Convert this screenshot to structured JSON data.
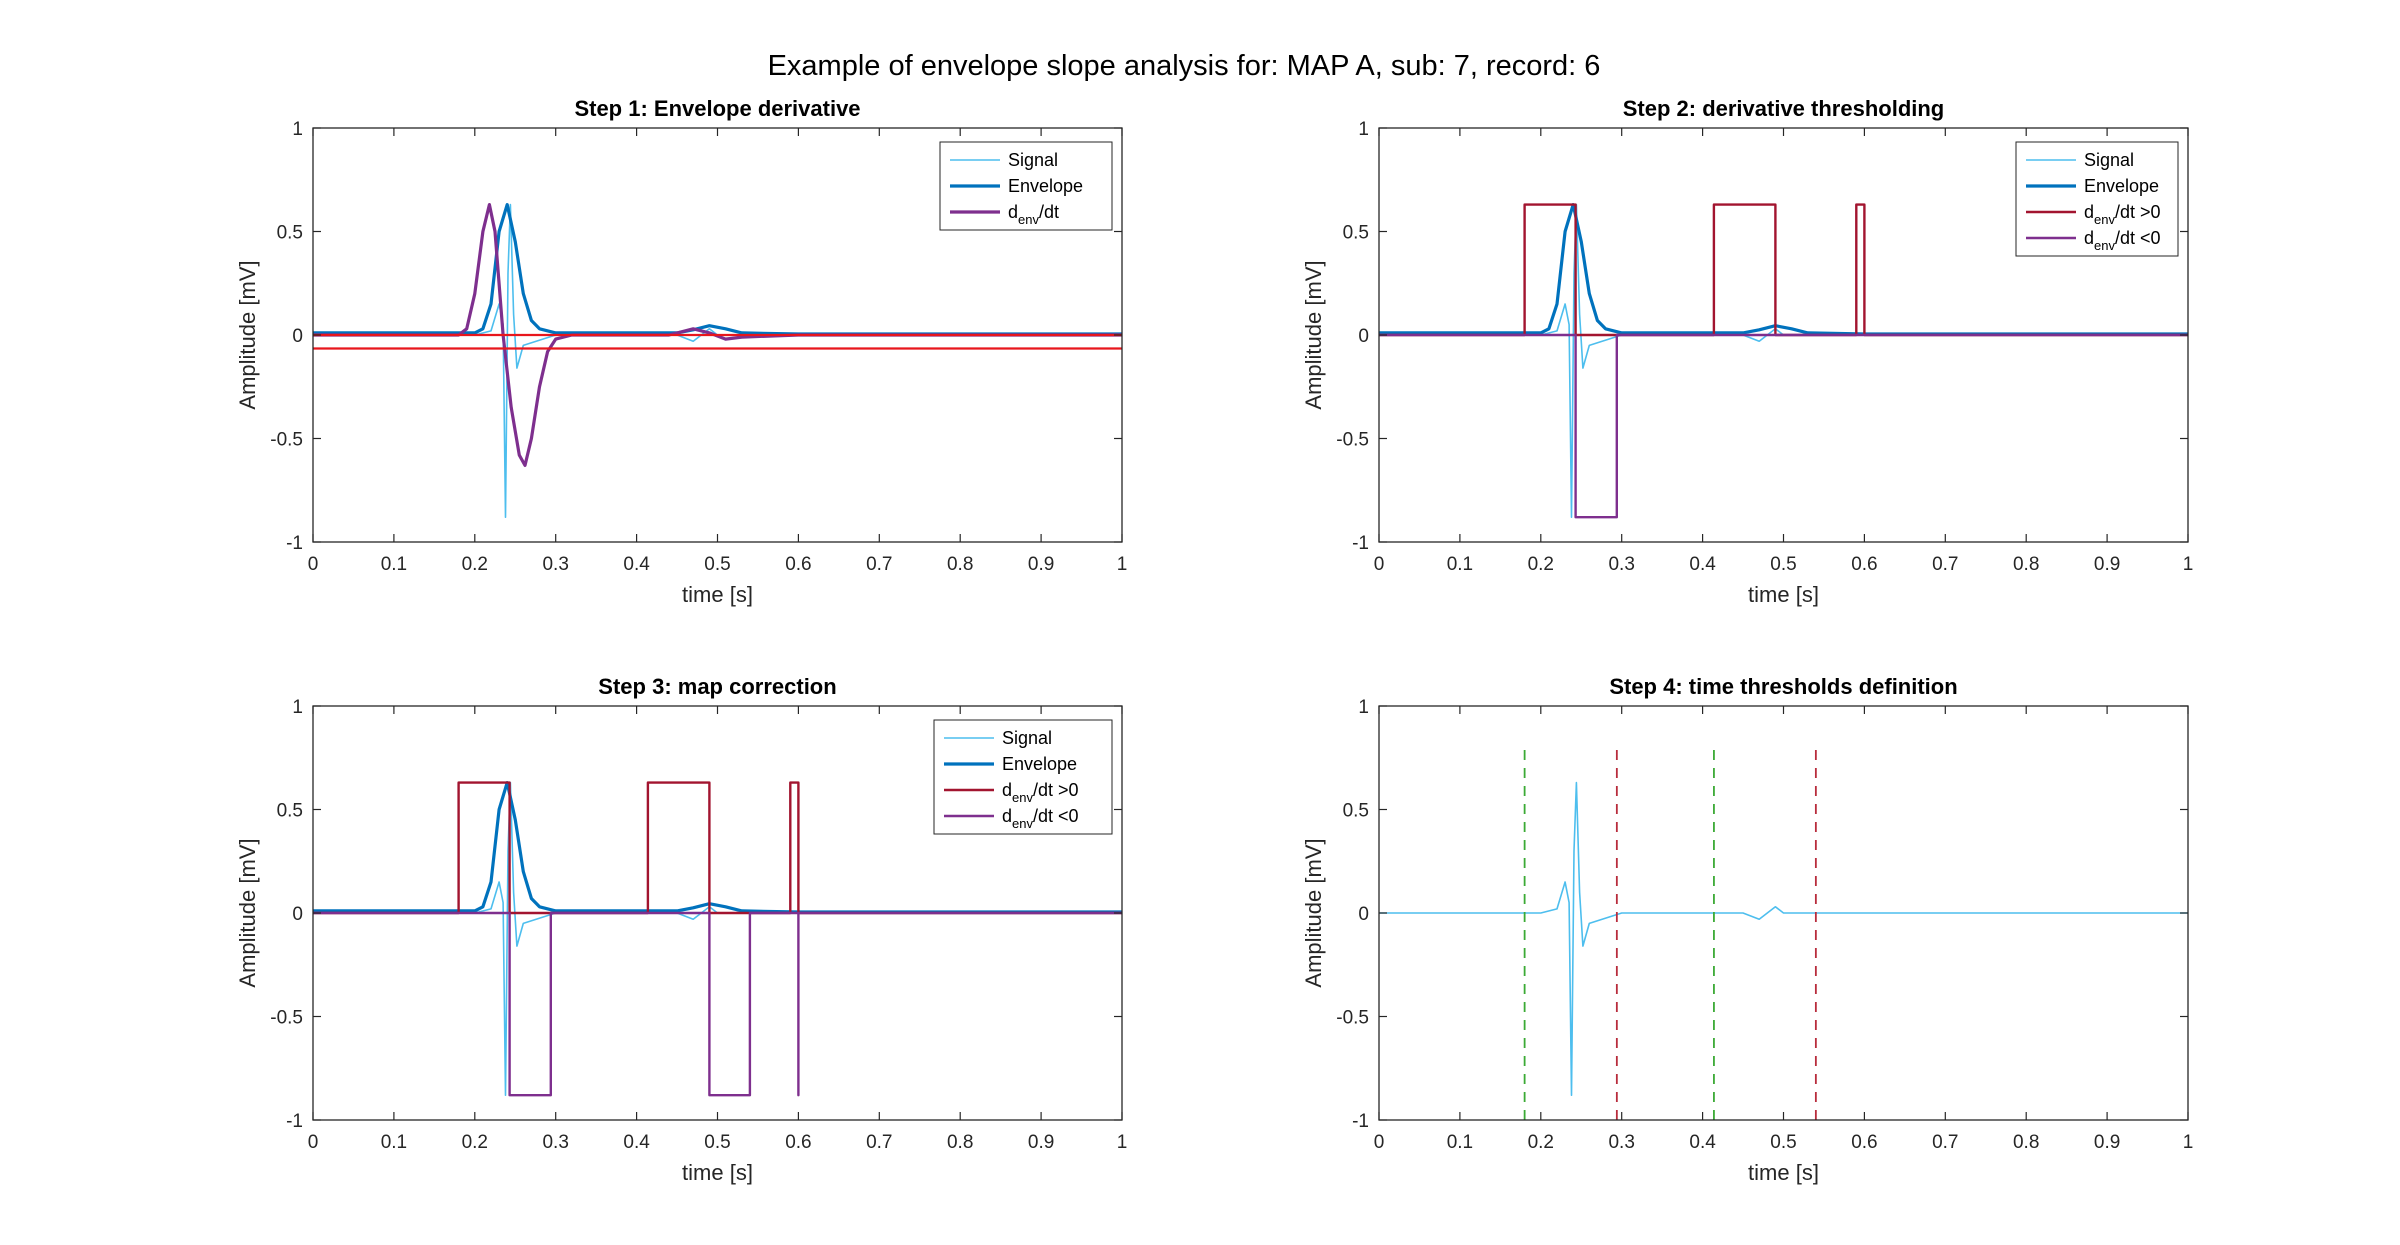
{
  "figure": {
    "title": "Example of envelope slope analysis for: MAP A, sub: 7, record: 6"
  },
  "colors": {
    "signal": "#4DBEEE",
    "envelope": "#0072BD",
    "derivative": "#7E2F8E",
    "threshold_line": "#E8161C",
    "pos_gate": "#A2142F",
    "neg_gate": "#7E2F8E",
    "green_marker": "#3BAA35",
    "red_marker": "#B82C3C"
  },
  "chart_data": [
    {
      "type": "line",
      "title": "Step 1: Envelope derivative",
      "xlabel": "time [s]",
      "ylabel": "Amplitude [mV]",
      "xlim": [
        0,
        1
      ],
      "ylim": [
        -1,
        1
      ],
      "xticks": [
        "0",
        "0.1",
        "0.2",
        "0.3",
        "0.4",
        "0.5",
        "0.6",
        "0.7",
        "0.8",
        "0.9",
        "1"
      ],
      "yticks": [
        "-1",
        "-0.5",
        "0",
        "0.5",
        "1"
      ],
      "grid": false,
      "legend_position": "top-right",
      "series": [
        {
          "name": "Signal",
          "style": "signal",
          "x": [
            0,
            0.1,
            0.2,
            0.22,
            0.23,
            0.235,
            0.238,
            0.241,
            0.244,
            0.248,
            0.252,
            0.26,
            0.3,
            0.45,
            0.47,
            0.49,
            0.5,
            0.6,
            0.76,
            0.77,
            1
          ],
          "y": [
            0,
            0,
            0,
            0.02,
            0.15,
            0.05,
            -0.88,
            0.3,
            0.63,
            0.1,
            -0.16,
            -0.05,
            0,
            0,
            -0.03,
            0.03,
            0,
            0,
            0,
            0,
            0
          ]
        },
        {
          "name": "Envelope",
          "style": "envelope",
          "x": [
            0,
            0.2,
            0.21,
            0.22,
            0.23,
            0.24,
            0.25,
            0.26,
            0.27,
            0.28,
            0.3,
            0.45,
            0.47,
            0.49,
            0.51,
            0.53,
            0.6,
            1
          ],
          "y": [
            0.01,
            0.01,
            0.03,
            0.15,
            0.5,
            0.63,
            0.45,
            0.2,
            0.07,
            0.03,
            0.01,
            0.01,
            0.025,
            0.045,
            0.03,
            0.01,
            0.005,
            0.005
          ]
        },
        {
          "name": "d_env/dt",
          "style": "derivative",
          "x": [
            0,
            0.18,
            0.19,
            0.2,
            0.21,
            0.218,
            0.225,
            0.235,
            0.245,
            0.255,
            0.262,
            0.27,
            0.28,
            0.29,
            0.3,
            0.32,
            0.44,
            0.47,
            0.49,
            0.51,
            0.53,
            0.6,
            1
          ],
          "y": [
            0,
            0,
            0.03,
            0.2,
            0.5,
            0.63,
            0.5,
            0,
            -0.35,
            -0.58,
            -0.63,
            -0.5,
            -0.25,
            -0.08,
            -0.02,
            0,
            0,
            0.03,
            0.01,
            -0.02,
            -0.01,
            0,
            0
          ]
        },
        {
          "style": "threshold_line",
          "x": [
            0,
            1
          ],
          "y": [
            0.0,
            0.0
          ]
        },
        {
          "style": "threshold_line",
          "x": [
            0,
            1
          ],
          "y": [
            -0.065,
            -0.065
          ]
        }
      ],
      "legend": [
        {
          "label": "Signal",
          "style": "signal"
        },
        {
          "label": "Envelope",
          "style": "envelope"
        },
        {
          "label": "d",
          "sub": "env",
          "suffix": "/dt",
          "style": "derivative"
        }
      ]
    },
    {
      "type": "line",
      "title": "Step 2: derivative thresholding",
      "xlabel": "time [s]",
      "ylabel": "Amplitude [mV]",
      "xlim": [
        0,
        1
      ],
      "ylim": [
        -1,
        1
      ],
      "xticks": [
        "0",
        "0.1",
        "0.2",
        "0.3",
        "0.4",
        "0.5",
        "0.6",
        "0.7",
        "0.8",
        "0.9",
        "1"
      ],
      "yticks": [
        "-1",
        "-0.5",
        "0",
        "0.5",
        "1"
      ],
      "grid": false,
      "legend_position": "top-right",
      "series": [
        {
          "name": "Signal",
          "style": "signal",
          "x": [
            0,
            0.1,
            0.2,
            0.22,
            0.23,
            0.235,
            0.238,
            0.241,
            0.244,
            0.248,
            0.252,
            0.26,
            0.3,
            0.45,
            0.47,
            0.49,
            0.5,
            0.6,
            0.76,
            0.77,
            1
          ],
          "y": [
            0,
            0,
            0,
            0.02,
            0.15,
            0.05,
            -0.88,
            0.3,
            0.63,
            0.1,
            -0.16,
            -0.05,
            0,
            0,
            -0.03,
            0.03,
            0,
            0,
            0,
            0,
            0
          ]
        },
        {
          "name": "Envelope",
          "style": "envelope",
          "x": [
            0,
            0.2,
            0.21,
            0.22,
            0.23,
            0.24,
            0.25,
            0.26,
            0.27,
            0.28,
            0.3,
            0.45,
            0.47,
            0.49,
            0.51,
            0.53,
            0.6,
            1
          ],
          "y": [
            0.01,
            0.01,
            0.03,
            0.15,
            0.5,
            0.63,
            0.45,
            0.2,
            0.07,
            0.03,
            0.01,
            0.01,
            0.025,
            0.045,
            0.03,
            0.01,
            0.005,
            0.005
          ]
        },
        {
          "name": "d_env/dt >0",
          "style": "pos_gate",
          "x": [
            0,
            0.18,
            0.18,
            0.243,
            0.243,
            0.414,
            0.414,
            0.49,
            0.49,
            0.59,
            0.59,
            0.6,
            0.6,
            1
          ],
          "y": [
            0,
            0,
            0.63,
            0.63,
            0,
            0,
            0.63,
            0.63,
            0,
            0,
            0.63,
            0.63,
            0,
            0
          ]
        },
        {
          "name": "d_env/dt <0",
          "style": "neg_gate",
          "x": [
            0,
            0.243,
            0.243,
            0.294,
            0.294,
            1
          ],
          "y": [
            0,
            0,
            -0.88,
            -0.88,
            0,
            0
          ]
        }
      ],
      "legend": [
        {
          "label": "Signal",
          "style": "signal"
        },
        {
          "label": "Envelope",
          "style": "envelope"
        },
        {
          "label": "d",
          "sub": "env",
          "suffix": "/dt >0",
          "style": "pos_gate"
        },
        {
          "label": "d",
          "sub": "env",
          "suffix": "/dt <0",
          "style": "neg_gate"
        }
      ]
    },
    {
      "type": "line",
      "title": "Step 3: map correction",
      "xlabel": "time [s]",
      "ylabel": "Amplitude [mV]",
      "xlim": [
        0,
        1
      ],
      "ylim": [
        -1,
        1
      ],
      "xticks": [
        "0",
        "0.1",
        "0.2",
        "0.3",
        "0.4",
        "0.5",
        "0.6",
        "0.7",
        "0.8",
        "0.9",
        "1"
      ],
      "yticks": [
        "-1",
        "-0.5",
        "0",
        "0.5",
        "1"
      ],
      "grid": false,
      "legend_position": "top-right",
      "series": [
        {
          "name": "Signal",
          "style": "signal",
          "x": [
            0,
            0.1,
            0.2,
            0.22,
            0.23,
            0.235,
            0.238,
            0.241,
            0.244,
            0.248,
            0.252,
            0.26,
            0.3,
            0.45,
            0.47,
            0.49,
            0.5,
            0.6,
            0.76,
            0.77,
            1
          ],
          "y": [
            0,
            0,
            0,
            0.02,
            0.15,
            0.05,
            -0.88,
            0.3,
            0.63,
            0.1,
            -0.16,
            -0.05,
            0,
            0,
            -0.03,
            0.03,
            0,
            0,
            0,
            0,
            0
          ]
        },
        {
          "name": "Envelope",
          "style": "envelope",
          "x": [
            0,
            0.2,
            0.21,
            0.22,
            0.23,
            0.24,
            0.25,
            0.26,
            0.27,
            0.28,
            0.3,
            0.45,
            0.47,
            0.49,
            0.51,
            0.53,
            0.6,
            1
          ],
          "y": [
            0.01,
            0.01,
            0.03,
            0.15,
            0.5,
            0.63,
            0.45,
            0.2,
            0.07,
            0.03,
            0.01,
            0.01,
            0.025,
            0.045,
            0.03,
            0.01,
            0.005,
            0.005
          ]
        },
        {
          "name": "d_env/dt >0",
          "style": "pos_gate",
          "x": [
            0,
            0.18,
            0.18,
            0.243,
            0.243,
            0.414,
            0.414,
            0.49,
            0.49,
            0.59,
            0.59,
            0.6,
            0.6,
            1
          ],
          "y": [
            0,
            0,
            0.63,
            0.63,
            0,
            0,
            0.63,
            0.63,
            0,
            0,
            0.63,
            0.63,
            0,
            0
          ]
        },
        {
          "name": "d_env/dt <0",
          "style": "neg_gate",
          "x": [
            0,
            0.243,
            0.243,
            0.294,
            0.294,
            0.49,
            0.49,
            0.54,
            0.54,
            0.6,
            0.6,
            0.6,
            1
          ],
          "y": [
            0,
            0,
            -0.88,
            -0.88,
            0,
            0,
            -0.88,
            -0.88,
            0,
            0,
            -0.88,
            0,
            0
          ]
        }
      ],
      "legend": [
        {
          "label": "Signal",
          "style": "signal"
        },
        {
          "label": "Envelope",
          "style": "envelope"
        },
        {
          "label": "d",
          "sub": "env",
          "suffix": "/dt >0",
          "style": "pos_gate"
        },
        {
          "label": "d",
          "sub": "env",
          "suffix": "/dt <0",
          "style": "neg_gate"
        }
      ]
    },
    {
      "type": "line",
      "title": "Step 4: time thresholds definition",
      "xlabel": "time [s]",
      "ylabel": "Amplitude [mV]",
      "xlim": [
        0,
        1
      ],
      "ylim": [
        -1,
        1
      ],
      "xticks": [
        "0",
        "0.1",
        "0.2",
        "0.3",
        "0.4",
        "0.5",
        "0.6",
        "0.7",
        "0.8",
        "0.9",
        "1"
      ],
      "yticks": [
        "-1",
        "-0.5",
        "0",
        "0.5",
        "1"
      ],
      "grid": false,
      "series": [
        {
          "style": "signal",
          "x": [
            0,
            0.1,
            0.2,
            0.22,
            0.23,
            0.235,
            0.238,
            0.241,
            0.244,
            0.248,
            0.252,
            0.26,
            0.3,
            0.45,
            0.47,
            0.49,
            0.5,
            0.6,
            0.76,
            0.77,
            1
          ],
          "y": [
            0,
            0,
            0,
            0.02,
            0.15,
            0.05,
            -0.88,
            0.3,
            0.63,
            0.1,
            -0.16,
            -0.05,
            0,
            0,
            -0.03,
            0.03,
            0,
            0,
            0,
            0,
            0
          ]
        }
      ],
      "vlines": [
        {
          "x": 0.18,
          "y": [
            -1,
            0.8
          ],
          "style": "green_marker"
        },
        {
          "x": 0.294,
          "y": [
            -1,
            0.8
          ],
          "style": "red_marker"
        },
        {
          "x": 0.414,
          "y": [
            -1,
            0.8
          ],
          "style": "green_marker"
        },
        {
          "x": 0.54,
          "y": [
            -1,
            0.8
          ],
          "style": "red_marker"
        }
      ]
    }
  ]
}
